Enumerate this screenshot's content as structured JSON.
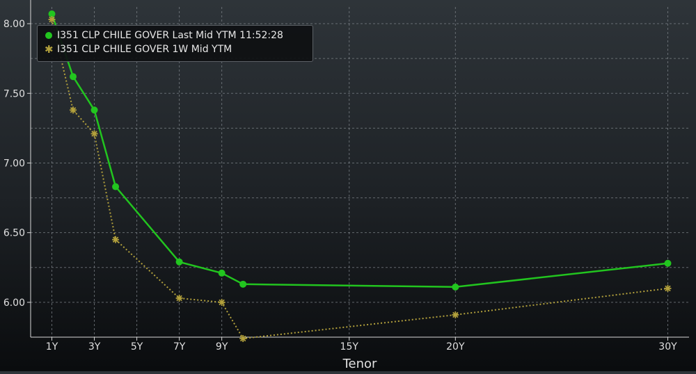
{
  "chart_data": {
    "type": "line",
    "xlabel": "Tenor",
    "ylabel": "",
    "ylim": [
      5.75,
      8.12
    ],
    "xlim": [
      0,
      31
    ],
    "x_ticks": [
      {
        "label": "1Y",
        "value": 1
      },
      {
        "label": "3Y",
        "value": 3
      },
      {
        "label": "5Y",
        "value": 5
      },
      {
        "label": "7Y",
        "value": 7
      },
      {
        "label": "9Y",
        "value": 9
      },
      {
        "label": "15Y",
        "value": 15
      },
      {
        "label": "20Y",
        "value": 20
      },
      {
        "label": "30Y",
        "value": 30
      }
    ],
    "y_ticks": [
      {
        "label": "6.00",
        "value": 6.0
      },
      {
        "label": "6.50",
        "value": 6.5
      },
      {
        "label": "7.00",
        "value": 7.0
      },
      {
        "label": "7.50",
        "value": 7.5
      },
      {
        "label": "8.00",
        "value": 8.0
      }
    ],
    "grid": true,
    "legend_position": "top-left",
    "series": [
      {
        "name": "I351 CLP CHILE GOVER Last Mid YTM 11:52:28",
        "color": "#22c51f",
        "marker": "circle",
        "style": "solid",
        "points": [
          [
            1,
            8.07
          ],
          [
            2,
            7.62
          ],
          [
            3,
            7.38
          ],
          [
            4,
            6.83
          ],
          [
            7,
            6.29
          ],
          [
            9,
            6.21
          ],
          [
            10,
            6.13
          ],
          [
            20,
            6.11
          ],
          [
            30,
            6.28
          ]
        ]
      },
      {
        "name": "I351 CLP CHILE GOVER 1W Mid YTM",
        "color": "#b3a13c",
        "marker": "star",
        "style": "dotted",
        "points": [
          [
            1,
            8.03
          ],
          [
            2,
            7.38
          ],
          [
            3,
            7.21
          ],
          [
            4,
            6.45
          ],
          [
            7,
            6.03
          ],
          [
            9,
            6.0
          ],
          [
            10,
            5.74
          ],
          [
            20,
            5.91
          ],
          [
            30,
            6.1
          ]
        ]
      }
    ]
  }
}
